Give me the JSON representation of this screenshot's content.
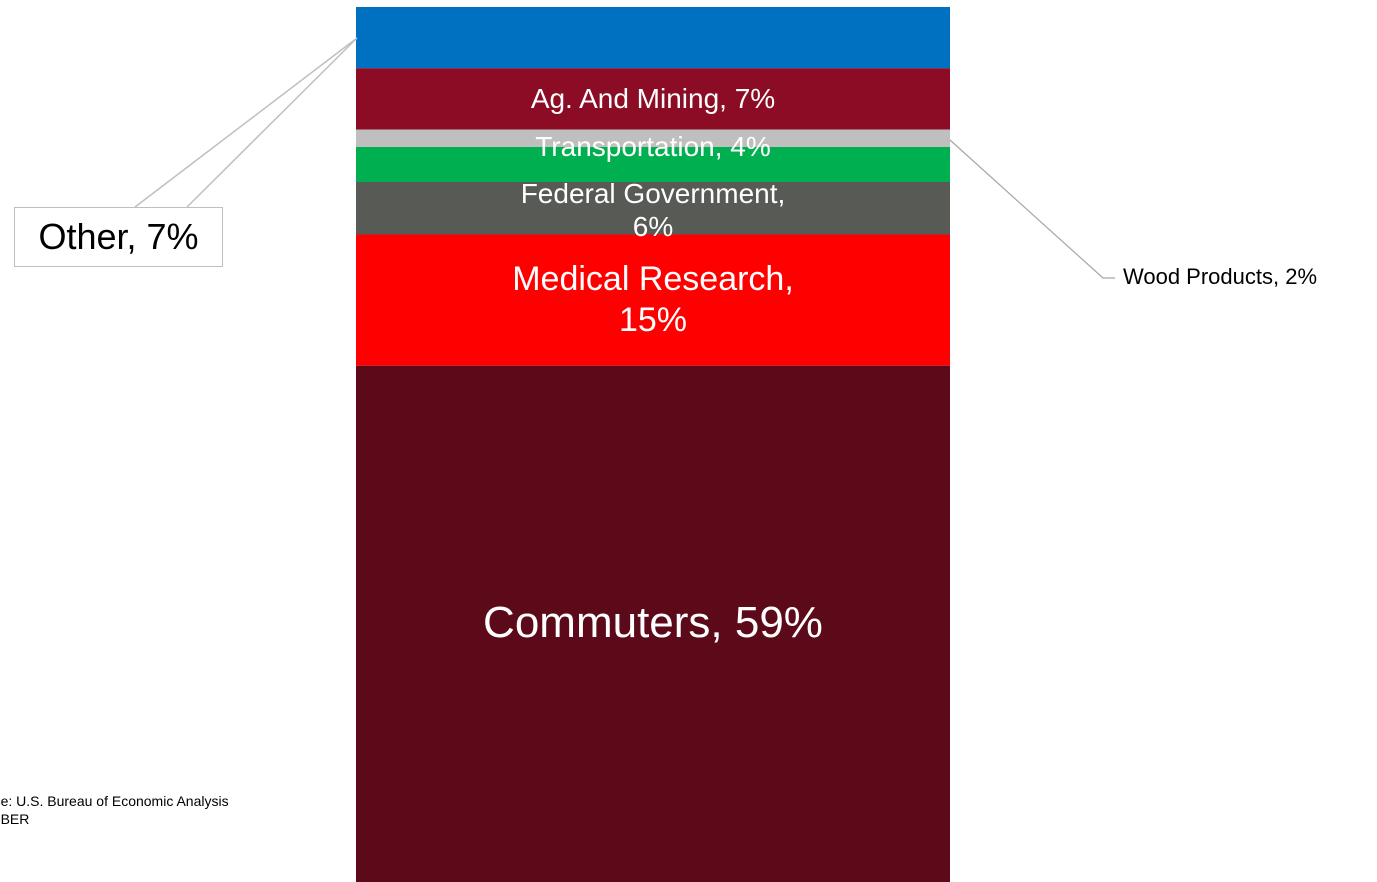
{
  "chart_data": {
    "type": "stacked_bar",
    "segments": [
      {
        "label": "Other, 7%",
        "value": 7,
        "color": "#0070c0"
      },
      {
        "label": "Ag. And Mining, 7%",
        "value": 7,
        "color": "#8b0c24"
      },
      {
        "label": "Wood Products, 2%",
        "value": 2,
        "color": "#bfbfbf"
      },
      {
        "label": "Transportation, 4%",
        "value": 4,
        "color": "#00b050"
      },
      {
        "label": "Federal Government, 6%",
        "value": 6,
        "color": "#585a55"
      },
      {
        "label": "Medical Research, 15%",
        "value": 15,
        "color": "#ff0000"
      },
      {
        "label": "Commuters, 59%",
        "value": 59,
        "color": "#5c0a19"
      }
    ],
    "ylim": [
      0,
      100
    ],
    "source": "Source:  U.S. Bureau of Economic Analysis and BBER"
  }
}
